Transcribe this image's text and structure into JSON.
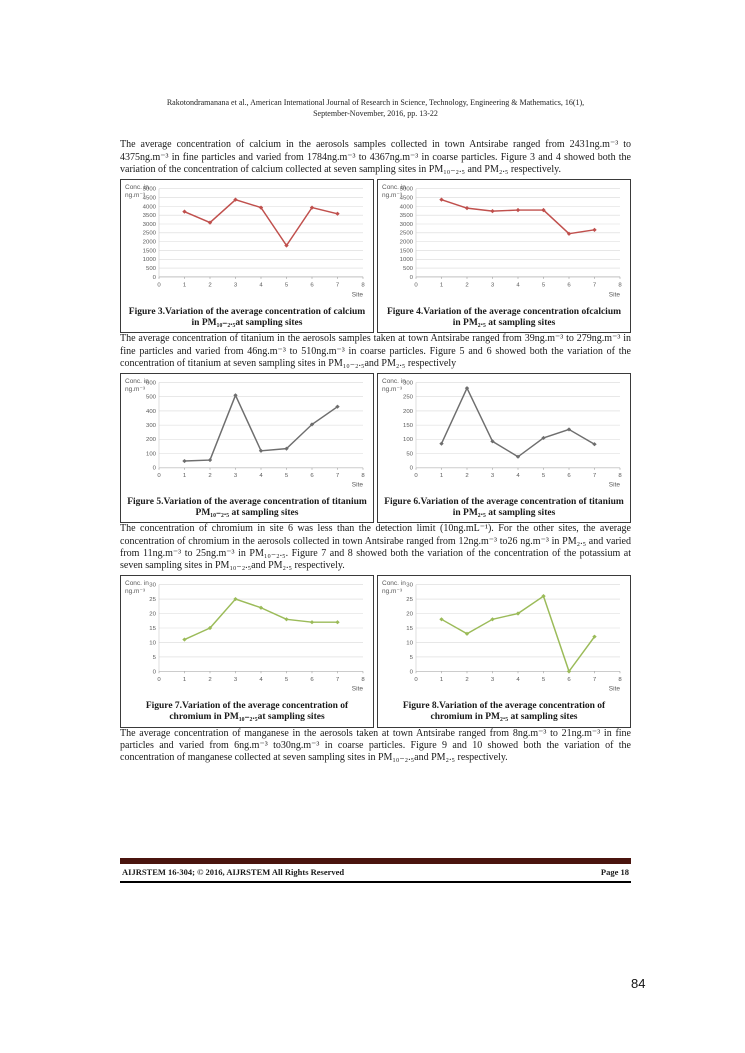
{
  "header": {
    "line1": "Rakotondramanana et al., American International Journal of Research in Science, Technology, Engineering & Mathematics, 16(1),",
    "line2": "September-November, 2016, pp. 13-22"
  },
  "paragraphs": {
    "calcium": "The average concentration of calcium in the aerosols samples collected in town Antsirabe ranged from 2431ng.m⁻³ to 4375ng.m⁻³ in fine particles and varied from 1784ng.m⁻³ to 4367ng.m⁻³ in coarse particles. Figure 3 and 4 showed both the variation of the concentration of calcium collected at seven sampling sites in PM₁₀₋₂.₅ and PM₂.₅ respectively.",
    "titanium": "The average concentration of titanium in the aerosols samples taken at town Antsirabe ranged from 39ng.m⁻³ to 279ng.m⁻³ in fine particles and varied from 46ng.m⁻³ to 510ng.m⁻³ in coarse particles. Figure 5 and 6 showed both the variation of the concentration of titanium at seven sampling sites in PM₁₀₋₂.₅and PM₂.₅ respectively",
    "chromium": "The concentration of chromium in site 6 was less than the detection limit (10ng.mL⁻¹). For the other sites, the average concentration of chromium in the aerosols collected in town Antsirabe ranged from 12ng.m⁻³ to26 ng.m⁻³ in PM₂.₅ and varied from 11ng.m⁻³ to 25ng.m⁻³ in PM₁₀₋₂.₅. Figure 7 and 8 showed both the variation of the concentration of the potassium at seven sampling sites in PM₁₀₋₂.₅and PM₂.₅ respectively.",
    "manganese": "The average concentration of manganese in the aerosols taken at town Antsirabe ranged from 8ng.m⁻³ to 21ng.m⁻³ in fine particles and varied from 6ng.m⁻³ to30ng.m⁻³ in coarse particles. Figure 9 and 10 showed both the variation of the concentration of manganese collected at seven sampling sites in PM₁₀₋₂.₅and PM₂.₅ respectively."
  },
  "chart_data": [
    {
      "type": "line",
      "caption": "Figure 3.Variation of the average concentration of calcium in PM₁₀₋₂.₅at sampling sites",
      "unit_label": "Conc. in\nng.m⁻³",
      "xlabel": "Site",
      "categories": [
        1,
        2,
        3,
        4,
        5,
        6,
        7
      ],
      "values": [
        3700,
        3080,
        4380,
        3930,
        1780,
        3930,
        3580
      ],
      "ylim": [
        0,
        5000
      ],
      "ystep": 500,
      "xlim": [
        0,
        8
      ],
      "color": "#C0504D",
      "grid": true,
      "legend": "none"
    },
    {
      "type": "line",
      "caption": "Figure 4.Variation of the average concentration ofcalcium in PM₂.₅ at sampling sites",
      "unit_label": "Conc. in\nng.m⁻³",
      "xlabel": "Site",
      "categories": [
        1,
        2,
        3,
        4,
        5,
        6,
        7
      ],
      "values": [
        4380,
        3900,
        3730,
        3790,
        3790,
        2450,
        2670
      ],
      "ylim": [
        0,
        5000
      ],
      "ystep": 500,
      "xlim": [
        0,
        8
      ],
      "color": "#C0504D",
      "grid": true,
      "legend": "none"
    },
    {
      "type": "line",
      "caption": "Figure 5.Variation of the average concentration of titanium PM₁₀₋₂.₅ at sampling sites",
      "unit_label": "Conc. in\nng.m⁻³",
      "xlabel": "Site",
      "categories": [
        1,
        2,
        3,
        4,
        5,
        6,
        7
      ],
      "values": [
        48,
        55,
        510,
        120,
        135,
        305,
        430
      ],
      "ylim": [
        0,
        600
      ],
      "ystep": 100,
      "xlim": [
        0,
        8
      ],
      "color": "#6e6e6e",
      "grid": true,
      "legend": "none"
    },
    {
      "type": "line",
      "caption": "Figure 6.Variation of the average concentration of titanium in PM₂.₅ at sampling sites",
      "unit_label": "Conc. in\nng.m⁻³",
      "xlabel": "Site",
      "categories": [
        1,
        2,
        3,
        4,
        5,
        6,
        7
      ],
      "values": [
        85,
        280,
        93,
        39,
        105,
        135,
        83
      ],
      "ylim": [
        0,
        300
      ],
      "ystep": 50,
      "xlim": [
        0,
        8
      ],
      "color": "#6e6e6e",
      "grid": true,
      "legend": "none"
    },
    {
      "type": "line",
      "caption": "Figure 7.Variation of the average concentration of chromium in PM₁₀₋₂.₅at sampling sites",
      "unit_label": "Conc. in\nng.m⁻³",
      "xlabel": "Site",
      "categories": [
        1,
        2,
        3,
        4,
        5,
        6,
        7
      ],
      "values": [
        11,
        15,
        25,
        22,
        18,
        17,
        17
      ],
      "ylim": [
        0,
        30
      ],
      "ystep": 5,
      "xlim": [
        0,
        8
      ],
      "color": "#9BBB59",
      "grid": true,
      "legend": "none"
    },
    {
      "type": "line",
      "caption": "Figure 8.Variation of the average concentration of chromium in PM₂.₅ at sampling sites",
      "unit_label": "Conc. in\nng.m⁻³",
      "xlabel": "Site",
      "categories": [
        1,
        2,
        3,
        4,
        5,
        6,
        7
      ],
      "values": [
        18,
        13,
        18,
        20,
        26,
        0,
        12
      ],
      "ylim": [
        0,
        30
      ],
      "ystep": 5,
      "xlim": [
        0,
        8
      ],
      "color": "#9BBB59",
      "grid": true,
      "legend": "none"
    }
  ],
  "footer": {
    "left": "AIJRSTEM 16-304; © 2016, AIJRSTEM All Rights Reserved",
    "right": "Page 18",
    "bar_color": "#4a140e"
  },
  "outer_page_number": "84"
}
